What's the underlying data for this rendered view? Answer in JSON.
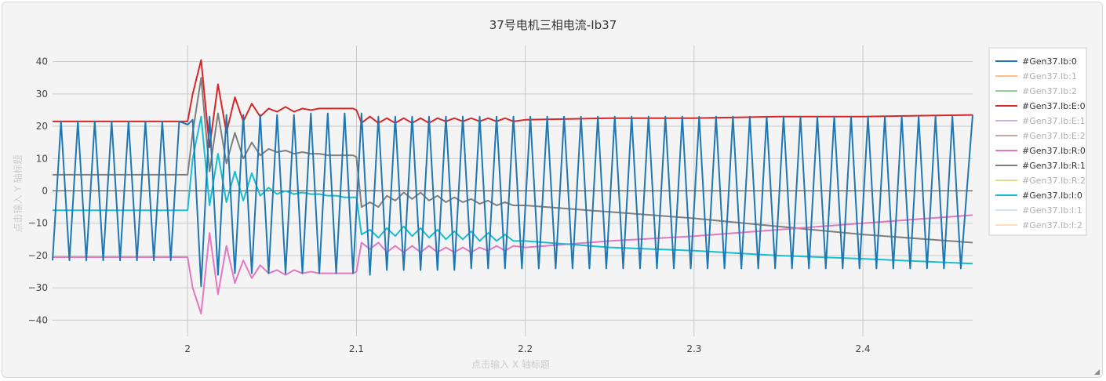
{
  "chart_data": {
    "type": "line",
    "title": "37号电机三相电流-Ib37",
    "xlabel": "点击输入 X 轴标题",
    "ylabel": "点击输入 Y 轴标题",
    "xlim": [
      1.92,
      2.465
    ],
    "ylim": [
      -45,
      45
    ],
    "x_ticks": [
      "2",
      "2.1",
      "2.2",
      "2.3",
      "2.4"
    ],
    "y_ticks": [
      "40",
      "30",
      "20",
      "10",
      "0",
      "−10",
      "−20",
      "−30",
      "−40"
    ],
    "grid": true,
    "legend_position": "right",
    "series": [
      {
        "name": "#Gen37.Ib:0",
        "color": "#1f77b4",
        "visible": true,
        "x": [
          1.92,
          1.925,
          1.93,
          1.935,
          1.94,
          1.945,
          1.95,
          1.955,
          1.96,
          1.965,
          1.97,
          1.975,
          1.98,
          1.985,
          1.99,
          1.995,
          2.0,
          2.003,
          2.008,
          2.013,
          2.018,
          2.023,
          2.028,
          2.033,
          2.038,
          2.043,
          2.048,
          2.053,
          2.058,
          2.063,
          2.068,
          2.073,
          2.078,
          2.083,
          2.088,
          2.093,
          2.098,
          2.103,
          2.108,
          2.113,
          2.118,
          2.123,
          2.128,
          2.133,
          2.138,
          2.143,
          2.148,
          2.153,
          2.158,
          2.163,
          2.168,
          2.173,
          2.178,
          2.183,
          2.188,
          2.193,
          2.198,
          2.203,
          2.208,
          2.213,
          2.218,
          2.223,
          2.228,
          2.233,
          2.238,
          2.243,
          2.248,
          2.253,
          2.258,
          2.263,
          2.268,
          2.273,
          2.278,
          2.283,
          2.288,
          2.293,
          2.298,
          2.303,
          2.308,
          2.313,
          2.318,
          2.323,
          2.328,
          2.333,
          2.338,
          2.343,
          2.348,
          2.353,
          2.358,
          2.363,
          2.368,
          2.373,
          2.378,
          2.383,
          2.388,
          2.393,
          2.398,
          2.403,
          2.408,
          2.413,
          2.418,
          2.423,
          2.428,
          2.433,
          2.438,
          2.443,
          2.448,
          2.453,
          2.458,
          2.465
        ],
        "y": [
          -21.5,
          21.5,
          -21.5,
          21.5,
          -21.5,
          21.5,
          -21.5,
          21.5,
          -21.5,
          21.5,
          -21.5,
          21.5,
          -21.5,
          21.5,
          -21.5,
          21.5,
          20.5,
          22,
          -29.5,
          23,
          -26,
          23.5,
          -25.5,
          23.5,
          -25.5,
          23.5,
          -25.5,
          23.5,
          -25.5,
          23.5,
          -25.5,
          24,
          -25.5,
          24,
          -25.5,
          24,
          -25.5,
          24,
          -26,
          23,
          -24.5,
          23,
          -24.5,
          23,
          -24.5,
          23,
          -24.5,
          23,
          -24.5,
          23,
          -24,
          23,
          -24,
          23,
          -24,
          23,
          -24,
          23,
          -24,
          23,
          -24,
          23,
          -24,
          23,
          -24,
          23,
          -24,
          23,
          -24,
          23,
          -24,
          23,
          -24,
          23,
          -24,
          23,
          -24,
          23,
          -24,
          23,
          -24,
          23,
          -24,
          23,
          -24,
          23,
          -24,
          23,
          -24,
          23,
          -24,
          23,
          -24,
          23,
          -24,
          23,
          -24,
          23,
          -24,
          23,
          -24,
          23,
          -24,
          23,
          -24,
          23,
          -24,
          23,
          -24,
          23.5
        ]
      },
      {
        "name": "#Gen37.Ib:1",
        "color": "#ff7f0e",
        "visible": false,
        "x": [],
        "y": []
      },
      {
        "name": "#Gen37.Ib:2",
        "color": "#2ca02c",
        "visible": false,
        "x": [],
        "y": []
      },
      {
        "name": "#Gen37.Ib:E:0",
        "color": "#d62728",
        "visible": true,
        "x": [
          1.92,
          2.0,
          2.003,
          2.008,
          2.013,
          2.018,
          2.023,
          2.028,
          2.033,
          2.038,
          2.043,
          2.048,
          2.053,
          2.058,
          2.063,
          2.068,
          2.073,
          2.078,
          2.083,
          2.088,
          2.093,
          2.098,
          2.1,
          2.103,
          2.108,
          2.113,
          2.118,
          2.123,
          2.128,
          2.133,
          2.138,
          2.143,
          2.148,
          2.153,
          2.158,
          2.163,
          2.168,
          2.173,
          2.178,
          2.183,
          2.188,
          2.193,
          2.2,
          2.25,
          2.3,
          2.35,
          2.4,
          2.465
        ],
        "y": [
          21.5,
          21.5,
          30,
          40.5,
          13.5,
          33,
          18,
          29,
          21.5,
          27,
          23,
          25.5,
          24.5,
          26,
          24.5,
          25.5,
          25,
          25.5,
          25.5,
          25.5,
          25.5,
          25.5,
          25,
          21,
          23,
          21,
          22.5,
          21,
          22.5,
          21,
          22.5,
          21,
          22.5,
          21.5,
          22.5,
          21.5,
          22.5,
          21.5,
          22.5,
          21.5,
          22.5,
          21.5,
          22,
          22.5,
          22.5,
          23,
          23,
          23.5
        ]
      },
      {
        "name": "#Gen37.Ib:E:1",
        "color": "#9467bd",
        "visible": false,
        "x": [],
        "y": []
      },
      {
        "name": "#Gen37.Ib:E:2",
        "color": "#8c564b",
        "visible": false,
        "x": [],
        "y": []
      },
      {
        "name": "#Gen37.Ib:R:0",
        "color": "#e377c2",
        "visible": true,
        "x": [
          1.92,
          2.0,
          2.003,
          2.008,
          2.013,
          2.018,
          2.023,
          2.028,
          2.033,
          2.038,
          2.043,
          2.048,
          2.053,
          2.058,
          2.063,
          2.068,
          2.073,
          2.078,
          2.083,
          2.088,
          2.093,
          2.098,
          2.1,
          2.103,
          2.108,
          2.113,
          2.118,
          2.123,
          2.128,
          2.133,
          2.138,
          2.143,
          2.148,
          2.153,
          2.158,
          2.163,
          2.168,
          2.173,
          2.178,
          2.183,
          2.188,
          2.193,
          2.2,
          2.25,
          2.3,
          2.35,
          2.4,
          2.465
        ],
        "y": [
          -20.5,
          -20.5,
          -30,
          -38,
          -13,
          -32,
          -17,
          -28.5,
          -21.5,
          -27,
          -23,
          -25.5,
          -24.5,
          -26,
          -24.5,
          -25.5,
          -25,
          -25.5,
          -25.5,
          -25.5,
          -25.5,
          -25.5,
          -25,
          -16,
          -18,
          -16,
          -19,
          -17,
          -19,
          -17,
          -19,
          -17,
          -19,
          -17.5,
          -19,
          -17.5,
          -19,
          -17.5,
          -18.5,
          -17,
          -18.5,
          -17,
          -17.5,
          -15.5,
          -14,
          -12,
          -10,
          -7.5
        ]
      },
      {
        "name": "#Gen37.Ib:R:1",
        "color": "#7f7f7f",
        "visible": true,
        "x": [
          1.92,
          2.0,
          2.003,
          2.008,
          2.013,
          2.018,
          2.023,
          2.028,
          2.033,
          2.038,
          2.043,
          2.048,
          2.053,
          2.058,
          2.063,
          2.068,
          2.073,
          2.078,
          2.083,
          2.088,
          2.093,
          2.098,
          2.1,
          2.103,
          2.108,
          2.113,
          2.118,
          2.123,
          2.128,
          2.133,
          2.138,
          2.143,
          2.148,
          2.153,
          2.158,
          2.163,
          2.168,
          2.173,
          2.178,
          2.183,
          2.188,
          2.193,
          2.2,
          2.25,
          2.3,
          2.35,
          2.4,
          2.465
        ],
        "y": [
          5,
          5,
          18,
          35,
          6,
          24,
          8.5,
          18,
          10,
          15,
          11,
          13,
          12,
          12.5,
          11.5,
          12,
          11.5,
          11.5,
          11,
          11,
          11,
          11,
          10.5,
          -5,
          -3.5,
          -5,
          -1.5,
          -3,
          -0.5,
          -2.5,
          -0.5,
          -3,
          -1.5,
          -3.5,
          -2,
          -3.5,
          -2.5,
          -4,
          -3,
          -4.5,
          -3.5,
          -4.5,
          -4.5,
          -6.5,
          -8.5,
          -11,
          -13.5,
          -16
        ]
      },
      {
        "name": "#Gen37.Ib:R:2",
        "color": "#bcbd22",
        "visible": false,
        "x": [],
        "y": []
      },
      {
        "name": "#Gen37.Ib:I:0",
        "color": "#17becf",
        "visible": true,
        "x": [
          1.92,
          2.0,
          2.003,
          2.008,
          2.013,
          2.018,
          2.023,
          2.028,
          2.033,
          2.038,
          2.043,
          2.048,
          2.053,
          2.058,
          2.063,
          2.068,
          2.073,
          2.078,
          2.083,
          2.088,
          2.093,
          2.098,
          2.1,
          2.103,
          2.108,
          2.113,
          2.118,
          2.123,
          2.128,
          2.133,
          2.138,
          2.143,
          2.148,
          2.153,
          2.158,
          2.163,
          2.168,
          2.173,
          2.178,
          2.183,
          2.188,
          2.193,
          2.2,
          2.25,
          2.3,
          2.35,
          2.4,
          2.465
        ],
        "y": [
          -6,
          -6,
          10,
          23,
          -4.5,
          11.5,
          -3.5,
          6,
          -3,
          5.5,
          -1.5,
          1,
          -1,
          0,
          -1,
          -0.5,
          -1,
          -1,
          -1.5,
          -1.5,
          -2,
          -2,
          -2,
          -13.5,
          -12,
          -14.5,
          -11.5,
          -14,
          -11,
          -14,
          -11.5,
          -14.5,
          -12,
          -15,
          -12.5,
          -15,
          -12.5,
          -15.5,
          -13,
          -15.5,
          -13.5,
          -15.5,
          -15.5,
          -17.5,
          -18.5,
          -20,
          -21,
          -22.5
        ]
      },
      {
        "name": "#Gen37.Ib:I:1",
        "color": "#aec7e8",
        "visible": false,
        "x": [],
        "y": []
      },
      {
        "name": "#Gen37.Ib:I:2",
        "color": "#ffbb78",
        "visible": false,
        "x": [],
        "y": []
      }
    ]
  }
}
